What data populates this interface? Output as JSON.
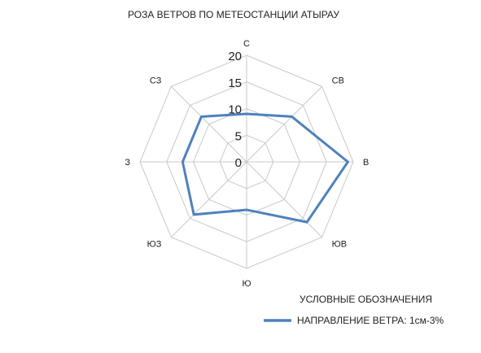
{
  "chart_data": {
    "type": "radar",
    "title": "РОЗА ВЕТРОВ ПО МЕТЕОСТАНЦИИ АТЫРАУ",
    "categories": [
      "С",
      "СВ",
      "В",
      "ЮВ",
      "Ю",
      "ЮЗ",
      "З",
      "СЗ"
    ],
    "series": [
      {
        "name": "НАПРАВЛЕНИЕ ВЕТРА: 1см-3%",
        "values": [
          9,
          12,
          19,
          16,
          9,
          14,
          12,
          12
        ],
        "color": "#4f81bd"
      }
    ],
    "rlim": [
      0,
      20
    ],
    "ticks": [
      "0",
      "5",
      "10",
      "15",
      "20"
    ],
    "tick_values": [
      0,
      5,
      10,
      15,
      20
    ],
    "grid": true,
    "legend": {
      "title": "УСЛОВНЫЕ ОБОЗНАЧЕНИЯ",
      "placement": "bottom-right"
    }
  },
  "colors": {
    "grid": "#c8c8c8",
    "text": "#222222",
    "series": "#4f81bd"
  }
}
